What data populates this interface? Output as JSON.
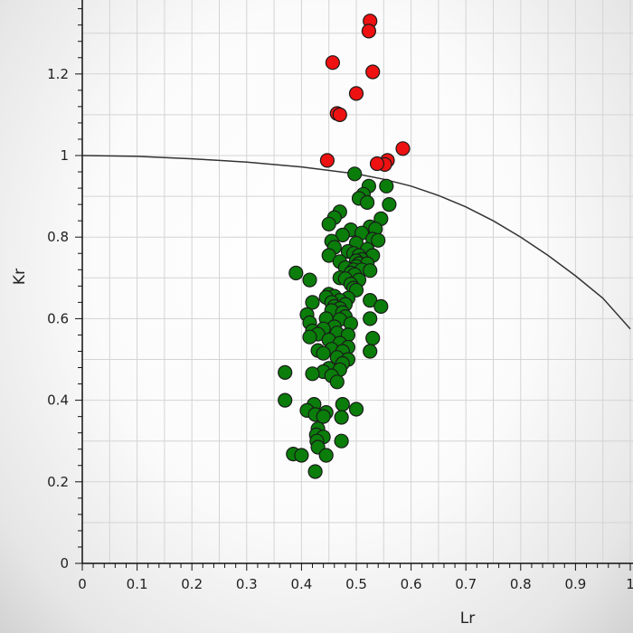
{
  "chart_data": {
    "type": "scatter",
    "title": "",
    "xlabel": "Lr",
    "ylabel": "Kr",
    "xlim": [
      0,
      1
    ],
    "ylim": [
      0,
      1.33
    ],
    "x_ticks": [
      "0",
      "0.1",
      "0.2",
      "0.3",
      "0.4",
      "0.5",
      "0.6",
      "0.7",
      "0.8",
      "0.9",
      "1"
    ],
    "y_ticks": [
      "0",
      "0.2",
      "0.4",
      "0.6",
      "0.8",
      "1",
      "1.2"
    ],
    "x_tick_values": [
      0,
      0.1,
      0.2,
      0.3,
      0.4,
      0.5,
      0.6,
      0.7,
      0.8,
      0.9,
      1
    ],
    "y_tick_values": [
      0,
      0.2,
      0.4,
      0.6,
      0.8,
      1,
      1.2
    ],
    "grid": true,
    "colors": {
      "grid": "#d4d4d4",
      "curve": "#333333",
      "inside_point": "#0a7d0a",
      "outside_point": "#ee1111",
      "point_outline": "#1a1a1a"
    },
    "curve": {
      "x": [
        0,
        0.1,
        0.2,
        0.3,
        0.4,
        0.5,
        0.55,
        0.6,
        0.65,
        0.7,
        0.75,
        0.8,
        0.85,
        0.9,
        0.95,
        1.0
      ],
      "y": [
        1.0,
        0.998,
        0.992,
        0.984,
        0.972,
        0.955,
        0.942,
        0.925,
        0.902,
        0.874,
        0.84,
        0.8,
        0.755,
        0.705,
        0.65,
        0.575
      ]
    },
    "series": [
      {
        "status": "outside",
        "points": [
          [
            0.525,
            1.33
          ],
          [
            0.523,
            1.305
          ],
          [
            0.457,
            1.228
          ],
          [
            0.53,
            1.205
          ],
          [
            0.5,
            1.152
          ],
          [
            0.465,
            1.103
          ],
          [
            0.47,
            1.1
          ],
          [
            0.585,
            1.017
          ],
          [
            0.557,
            0.988
          ],
          [
            0.552,
            0.978
          ],
          [
            0.538,
            0.98
          ],
          [
            0.447,
            0.988
          ]
        ]
      },
      {
        "status": "inside",
        "points": [
          [
            0.497,
            0.955
          ],
          [
            0.523,
            0.925
          ],
          [
            0.555,
            0.925
          ],
          [
            0.513,
            0.905
          ],
          [
            0.505,
            0.895
          ],
          [
            0.52,
            0.885
          ],
          [
            0.56,
            0.88
          ],
          [
            0.47,
            0.862
          ],
          [
            0.46,
            0.848
          ],
          [
            0.545,
            0.845
          ],
          [
            0.45,
            0.832
          ],
          [
            0.525,
            0.825
          ],
          [
            0.535,
            0.82
          ],
          [
            0.49,
            0.818
          ],
          [
            0.51,
            0.81
          ],
          [
            0.475,
            0.805
          ],
          [
            0.455,
            0.79
          ],
          [
            0.53,
            0.795
          ],
          [
            0.54,
            0.792
          ],
          [
            0.5,
            0.785
          ],
          [
            0.46,
            0.775
          ],
          [
            0.52,
            0.77
          ],
          [
            0.485,
            0.765
          ],
          [
            0.495,
            0.76
          ],
          [
            0.45,
            0.755
          ],
          [
            0.53,
            0.755
          ],
          [
            0.505,
            0.755
          ],
          [
            0.51,
            0.745
          ],
          [
            0.47,
            0.74
          ],
          [
            0.5,
            0.742
          ],
          [
            0.505,
            0.735
          ],
          [
            0.52,
            0.735
          ],
          [
            0.5,
            0.728
          ],
          [
            0.48,
            0.725
          ],
          [
            0.495,
            0.72
          ],
          [
            0.51,
            0.72
          ],
          [
            0.525,
            0.718
          ],
          [
            0.49,
            0.712
          ],
          [
            0.497,
            0.708
          ],
          [
            0.39,
            0.712
          ],
          [
            0.415,
            0.695
          ],
          [
            0.47,
            0.7
          ],
          [
            0.48,
            0.698
          ],
          [
            0.505,
            0.695
          ],
          [
            0.49,
            0.685
          ],
          [
            0.495,
            0.675
          ],
          [
            0.5,
            0.67
          ],
          [
            0.45,
            0.66
          ],
          [
            0.46,
            0.655
          ],
          [
            0.445,
            0.652
          ],
          [
            0.485,
            0.65
          ],
          [
            0.47,
            0.645
          ],
          [
            0.525,
            0.645
          ],
          [
            0.455,
            0.64
          ],
          [
            0.48,
            0.635
          ],
          [
            0.42,
            0.64
          ],
          [
            0.46,
            0.63
          ],
          [
            0.545,
            0.63
          ],
          [
            0.47,
            0.625
          ],
          [
            0.455,
            0.62
          ],
          [
            0.475,
            0.615
          ],
          [
            0.41,
            0.61
          ],
          [
            0.48,
            0.605
          ],
          [
            0.525,
            0.6
          ],
          [
            0.445,
            0.6
          ],
          [
            0.47,
            0.598
          ],
          [
            0.415,
            0.59
          ],
          [
            0.49,
            0.588
          ],
          [
            0.46,
            0.58
          ],
          [
            0.44,
            0.575
          ],
          [
            0.42,
            0.57
          ],
          [
            0.465,
            0.565
          ],
          [
            0.43,
            0.562
          ],
          [
            0.485,
            0.56
          ],
          [
            0.415,
            0.555
          ],
          [
            0.53,
            0.552
          ],
          [
            0.45,
            0.548
          ],
          [
            0.47,
            0.54
          ],
          [
            0.485,
            0.53
          ],
          [
            0.455,
            0.525
          ],
          [
            0.43,
            0.522
          ],
          [
            0.475,
            0.52
          ],
          [
            0.525,
            0.52
          ],
          [
            0.44,
            0.515
          ],
          [
            0.465,
            0.505
          ],
          [
            0.485,
            0.5
          ],
          [
            0.475,
            0.49
          ],
          [
            0.45,
            0.478
          ],
          [
            0.47,
            0.475
          ],
          [
            0.44,
            0.47
          ],
          [
            0.42,
            0.465
          ],
          [
            0.37,
            0.468
          ],
          [
            0.455,
            0.46
          ],
          [
            0.465,
            0.445
          ],
          [
            0.37,
            0.4
          ],
          [
            0.423,
            0.39
          ],
          [
            0.475,
            0.39
          ],
          [
            0.5,
            0.378
          ],
          [
            0.41,
            0.375
          ],
          [
            0.445,
            0.37
          ],
          [
            0.425,
            0.365
          ],
          [
            0.44,
            0.36
          ],
          [
            0.473,
            0.358
          ],
          [
            0.43,
            0.33
          ],
          [
            0.427,
            0.315
          ],
          [
            0.44,
            0.31
          ],
          [
            0.428,
            0.3
          ],
          [
            0.473,
            0.3
          ],
          [
            0.43,
            0.285
          ],
          [
            0.385,
            0.268
          ],
          [
            0.4,
            0.265
          ],
          [
            0.445,
            0.265
          ],
          [
            0.425,
            0.225
          ]
        ]
      }
    ]
  }
}
